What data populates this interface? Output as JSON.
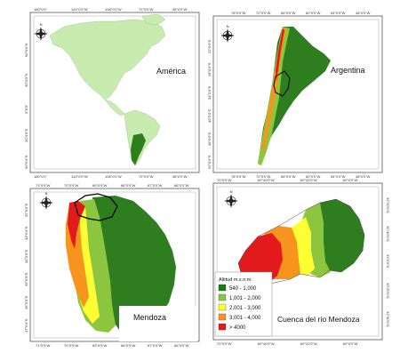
{
  "panels": {
    "america": {
      "title": "América",
      "top_ticks": [
        "180°0'0\"",
        "144°0'0\"W",
        "108°0'0\"W",
        "72°0'0\"W",
        "36°0'0\"W"
      ],
      "bottom_ticks": [
        "180°0'0\"",
        "144°0'0\"W",
        "108°0'0\"W",
        "72°0'0\"W",
        "36°0'0\"W"
      ],
      "left_ticks": [
        "60°0'0\"N",
        "30°0'0\"N",
        "0°0'0\"",
        "30°0'0\"S",
        "60°0'0\"S"
      ]
    },
    "argentina": {
      "title": "Argentina",
      "top_ticks": [
        "78°0'0\"W",
        "72°0'0\"W",
        "66°0'0\"W",
        "60°0'0\"W",
        "54°0'0\"W",
        "48°0'0\"W"
      ],
      "bottom_ticks": [
        "78°0'0\"W",
        "72°0'0\"W",
        "66°0'0\"W",
        "60°0'0\"W",
        "54°0'0\"W",
        "48°0'0\"W"
      ],
      "left_ticks": [
        "22°0'0\"S",
        "28°0'0\"S",
        "34°0'0\"S",
        "40°0'0\"S",
        "46°0'0\"S",
        "52°0'0\"S"
      ]
    },
    "mendoza": {
      "title": "Mendoza",
      "top_ticks": [
        "71°0'0\"W",
        "70°0'0\"W",
        "69°0'0\"W",
        "68°0'0\"W",
        "67°0'0\"W",
        "66°0'0\"W"
      ],
      "bottom_ticks": [
        "71°0'0\"W",
        "70°0'0\"W",
        "69°0'0\"W",
        "68°0'0\"W",
        "67°0'0\"W",
        "66°0'0\"W"
      ],
      "left_ticks": [
        "32°0'0\"S",
        "33°0'0\"S",
        "34°0'0\"S",
        "35°0'0\"S",
        "36°0'0\"S",
        "37°0'0\"S"
      ]
    },
    "cuenca": {
      "title": "Cuenca del río Mendoza",
      "top_ticks": [
        "70°0'0\"W",
        "69°40'0\"W",
        "69°20'0\"W",
        "69°0'0\"W"
      ],
      "bottom_ticks": [
        "70°0'0\"W",
        "69°40'0\"W",
        "69°20'0\"W",
        "69°0'0\"W"
      ],
      "right_ticks": [
        "32°20'0\"S",
        "32°40'0\"S",
        "33°0'0\"S",
        "33°20'0\"S",
        "33°40'0\"S"
      ]
    }
  },
  "legend": {
    "title": "Altitud m.s.n.m.",
    "items": [
      {
        "label": "540 - 1,000",
        "color": "#1a7a1a"
      },
      {
        "label": "1,001 - 2,000",
        "color": "#8cc63f"
      },
      {
        "label": "2,001 - 3,000",
        "color": "#ffff33"
      },
      {
        "label": "3,001 - 4,000",
        "color": "#f7941d"
      },
      {
        "label": "> 4000",
        "color": "#e31a1c"
      }
    ]
  },
  "north_arrow": "N",
  "colors": {
    "land_light": "#c8ecb0",
    "land_dark": "#2e7d1e",
    "mendoza_east": "#2e7d1e",
    "frame": "#555555"
  }
}
